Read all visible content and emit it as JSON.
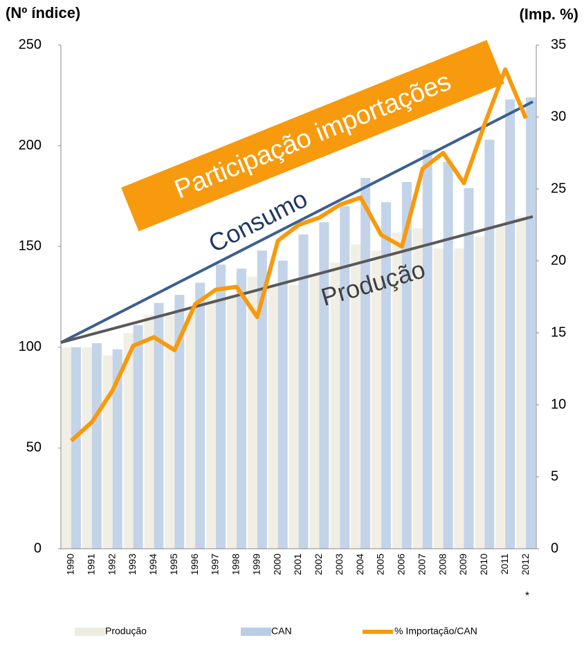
{
  "chart_data": {
    "type": "bar_line",
    "ylabel": "(Nº índice)",
    "y2label": "(Imp. %)",
    "categories": [
      "1990",
      "1991",
      "1992",
      "1993",
      "1994",
      "1995",
      "1996",
      "1997",
      "1998",
      "1999",
      "2000",
      "2001",
      "2002",
      "2003",
      "2004",
      "2005",
      "2006",
      "2007",
      "2008",
      "2009",
      "2010",
      "2011",
      "2012"
    ],
    "series": [
      {
        "name": "Produção",
        "color": "#eeece1",
        "kind": "bar",
        "values": [
          100,
          100,
          96,
          107,
          116,
          116,
          118,
          124,
          126,
          135,
          130,
          131,
          136,
          142,
          151,
          148,
          157,
          159,
          149,
          149,
          155,
          160,
          165
        ]
      },
      {
        "name": "CAN",
        "color": "#b9cde5",
        "kind": "bar",
        "values": [
          100,
          102,
          99,
          111,
          122,
          126,
          132,
          141,
          139,
          148,
          143,
          156,
          162,
          170,
          184,
          172,
          182,
          198,
          192,
          179,
          203,
          223,
          224
        ]
      },
      {
        "name": "% Importação/CAN",
        "color": "#f79a0d",
        "kind": "line",
        "axis": "y2",
        "values": [
          7.5,
          8.8,
          11,
          14.1,
          14.7,
          13.8,
          17,
          18,
          18.2,
          16.1,
          21.4,
          22.5,
          23,
          23.9,
          24.4,
          21.8,
          21,
          26.4,
          27.5,
          25.4,
          29.5,
          33.3,
          29.9
        ]
      }
    ],
    "ylim": [
      0,
      250
    ],
    "yticks": [
      0,
      50,
      100,
      150,
      200,
      250
    ],
    "y2lim": [
      0,
      35
    ],
    "y2ticks": [
      0,
      5,
      10,
      15,
      20,
      25,
      30,
      35
    ],
    "annotations": [
      "Participação importações",
      "Consumo",
      "Produção",
      "*"
    ]
  }
}
